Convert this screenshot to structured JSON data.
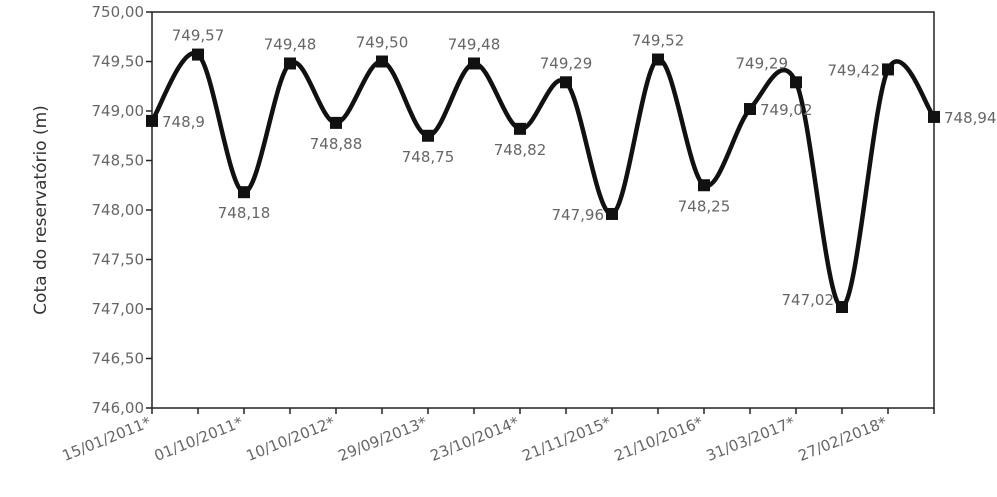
{
  "chart_data": {
    "type": "line",
    "title": "",
    "xlabel": "",
    "ylabel": "Cota do reservatório (m)",
    "ylim": [
      746.0,
      750.0
    ],
    "yticks": [
      "746,00",
      "746,50",
      "747,00",
      "747,50",
      "748,00",
      "748,50",
      "749,00",
      "749,50",
      "750,00"
    ],
    "xtick_labels": [
      "15/01/2011*",
      "01/10/2011*",
      "10/10/2012*",
      "29/09/2013*",
      "23/10/2014*",
      "21/11/2015*",
      "21/10/2016*",
      "31/03/2017*",
      "27/02/2018*"
    ],
    "grid": false,
    "series": [
      {
        "points": [
          {
            "value": 748.9,
            "label": "748,9"
          },
          {
            "value": 749.57,
            "label": "749,57"
          },
          {
            "value": 748.18,
            "label": "748,18"
          },
          {
            "value": 749.48,
            "label": "749,48"
          },
          {
            "value": 748.88,
            "label": "748,88"
          },
          {
            "value": 749.5,
            "label": "749,50"
          },
          {
            "value": 748.75,
            "label": "748,75"
          },
          {
            "value": 749.48,
            "label": "749,48"
          },
          {
            "value": 748.82,
            "label": "748,82"
          },
          {
            "value": 749.29,
            "label": "749,29"
          },
          {
            "value": 747.96,
            "label": "747,96"
          },
          {
            "value": 749.52,
            "label": "749,52"
          },
          {
            "value": 748.25,
            "label": "748,25"
          },
          {
            "value": 749.02,
            "label": "749,02"
          },
          {
            "value": 749.29,
            "label": "749,29"
          },
          {
            "value": 747.02,
            "label": "747,02"
          },
          {
            "value": 749.42,
            "label": "749,42"
          },
          {
            "value": 748.94,
            "label": "748,94"
          }
        ]
      }
    ]
  }
}
